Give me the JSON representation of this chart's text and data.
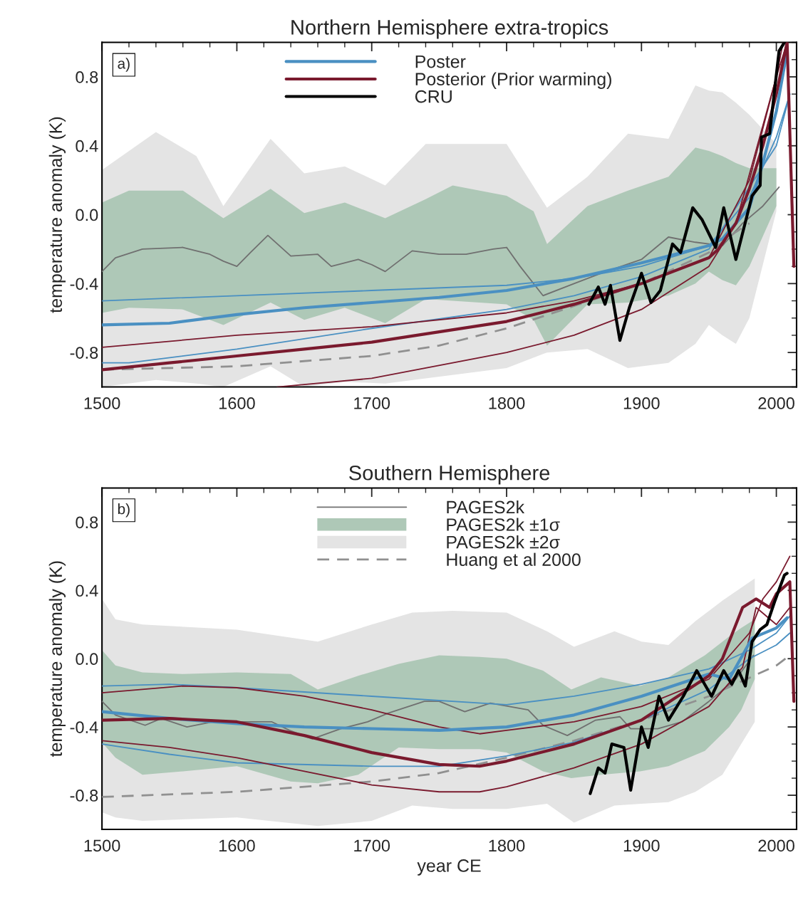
{
  "chart_data": [
    {
      "type": "line",
      "title": "Northern Hemisphere extra-tropics",
      "ylabel": "temperature anomaly (K)",
      "annotations": [
        "a)"
      ],
      "xlim": [
        1500,
        2015
      ],
      "ylim": [
        -1.0,
        1.0
      ],
      "xticks": [
        1500,
        1600,
        1700,
        1800,
        1900,
        2000
      ],
      "yticks": [
        {
          "value": -0.8,
          "label": "-0.8"
        },
        {
          "value": -0.4,
          "label": "-0.4"
        },
        {
          "value": 0.0,
          "label": "0.0"
        },
        {
          "value": 0.4,
          "label": "0.4"
        },
        {
          "value": 0.8,
          "label": "0.8"
        }
      ],
      "legend": "top",
      "grid": false,
      "series": [
        {
          "type": "line",
          "color": "#707070",
          "x": [
            1500,
            1510,
            1530,
            1560,
            1580,
            1590,
            1600,
            1610,
            1623,
            1640,
            1660,
            1670,
            1690,
            1700,
            1710,
            1730,
            1750,
            1770,
            1790,
            1800,
            1810,
            1827,
            1850,
            1870,
            1900,
            1920,
            1940,
            1960,
            1975,
            1990,
            2002
          ],
          "values": [
            -0.33,
            -0.25,
            -0.2,
            -0.19,
            -0.23,
            -0.27,
            -0.3,
            -0.22,
            -0.12,
            -0.24,
            -0.23,
            -0.3,
            -0.26,
            -0.29,
            -0.33,
            -0.21,
            -0.23,
            -0.23,
            -0.2,
            -0.19,
            -0.3,
            -0.47,
            -0.4,
            -0.34,
            -0.26,
            -0.13,
            -0.16,
            -0.18,
            -0.05,
            0.05,
            0.16
          ]
        },
        {
          "color": "#aec8b7",
          "x": [
            1500,
            1520,
            1560,
            1590,
            1625,
            1650,
            1680,
            1710,
            1740,
            1760,
            1800,
            1820,
            1830,
            1860,
            1890,
            1920,
            1940,
            1950,
            1960,
            1970,
            1980,
            2000
          ],
          "values": [
            null,
            null,
            null,
            null,
            null,
            null,
            null,
            null,
            null,
            null,
            null,
            null,
            null,
            null,
            null,
            null,
            null,
            null,
            null,
            null,
            null,
            null
          ],
          "lower": [
            -0.57,
            -0.54,
            -0.55,
            -0.64,
            -0.51,
            -0.61,
            -0.54,
            -0.63,
            -0.49,
            -0.5,
            -0.52,
            -0.61,
            -0.76,
            -0.52,
            -0.51,
            -0.47,
            -0.4,
            -0.33,
            -0.38,
            -0.41,
            -0.3,
            0.05
          ],
          "upper": [
            0.07,
            0.14,
            0.14,
            -0.02,
            0.15,
            0.01,
            0.07,
            -0.02,
            0.09,
            0.17,
            0.11,
            0.02,
            -0.17,
            0.05,
            0.14,
            0.22,
            0.39,
            0.37,
            0.34,
            0.3,
            0.27,
            0.27
          ]
        },
        {
          "color": "#e4e4e4",
          "x": [
            1500,
            1540,
            1570,
            1590,
            1625,
            1650,
            1680,
            1710,
            1740,
            1770,
            1800,
            1830,
            1860,
            1890,
            1920,
            1940,
            1950,
            1960,
            1970,
            1980,
            2000
          ],
          "values": [
            null,
            null,
            null,
            null,
            null,
            null,
            null,
            null,
            null,
            null,
            null,
            null,
            null,
            null,
            null,
            null,
            null,
            null,
            null,
            null,
            null
          ],
          "lower": [
            -1.0,
            -0.96,
            -0.98,
            -1.0,
            -0.88,
            -1.0,
            -0.97,
            -0.98,
            -0.95,
            -0.92,
            -0.89,
            -0.8,
            -0.78,
            -0.89,
            -0.86,
            -0.75,
            -0.64,
            -0.7,
            -0.75,
            -0.6,
            0.02
          ],
          "upper": [
            0.26,
            0.48,
            0.34,
            0.05,
            0.44,
            0.24,
            0.28,
            0.17,
            0.41,
            0.41,
            0.41,
            0.04,
            0.22,
            0.47,
            0.44,
            0.75,
            0.72,
            0.71,
            0.65,
            0.58,
            0.41
          ]
        },
        {
          "type": "line",
          "line_style": "dashed",
          "color": "#909090",
          "x": [
            1500,
            1600,
            1700,
            1750,
            1800,
            1850,
            1900,
            1950,
            1970,
            1980
          ],
          "values": [
            -0.9,
            -0.88,
            -0.82,
            -0.76,
            -0.66,
            -0.53,
            -0.4,
            -0.22,
            -0.1,
            -0.05
          ]
        },
        {
          "type": "line",
          "color": "#4a90c2",
          "x": [
            1500,
            1600,
            1700,
            1800,
            1850,
            1900,
            1950,
            1980,
            2000,
            2010
          ],
          "values": [
            -0.5,
            -0.47,
            -0.44,
            -0.41,
            -0.37,
            -0.3,
            -0.18,
            0.1,
            0.45,
            0.7
          ]
        },
        {
          "type": "line",
          "color": "#4a90c2",
          "x": [
            1500,
            1520,
            1600,
            1700,
            1800,
            1850,
            1900,
            1950,
            2000,
            2010
          ],
          "values": [
            -0.86,
            -0.86,
            -0.78,
            -0.66,
            -0.55,
            -0.47,
            -0.36,
            -0.2,
            0.4,
            0.7
          ]
        },
        {
          "type": "line",
          "color": "#7a1a2e",
          "x": [
            1500,
            1600,
            1700,
            1800,
            1850,
            1900,
            1950,
            1980,
            2000,
            2008,
            2013
          ],
          "values": [
            -0.77,
            -0.7,
            -0.65,
            -0.57,
            -0.5,
            -0.4,
            -0.25,
            0.2,
            0.8,
            1.0,
            -0.2
          ]
        },
        {
          "type": "line",
          "color": "#7a1a2e",
          "x": [
            1630,
            1700,
            1800,
            1850,
            1900,
            1950,
            1970,
            2000,
            2005
          ],
          "values": [
            -1.0,
            -0.95,
            -0.8,
            -0.7,
            -0.55,
            -0.3,
            -0.05,
            0.8,
            1.0
          ]
        },
        {
          "name": "Poster",
          "color": "#4a90c2",
          "x": [
            1500,
            1550,
            1600,
            1650,
            1700,
            1750,
            1800,
            1850,
            1900,
            1950,
            1960,
            1980,
            1990,
            2000,
            2008
          ],
          "values": [
            -0.64,
            -0.63,
            -0.58,
            -0.54,
            -0.51,
            -0.48,
            -0.44,
            -0.37,
            -0.28,
            -0.18,
            -0.14,
            0.04,
            0.3,
            0.6,
            0.95
          ]
        },
        {
          "name": "Posterior (Prior warming)",
          "color": "#7a1a2e",
          "x": [
            1500,
            1550,
            1600,
            1650,
            1700,
            1750,
            1800,
            1850,
            1900,
            1950,
            1957,
            1970,
            1980,
            1990,
            2000,
            2008,
            2013
          ],
          "values": [
            -0.9,
            -0.86,
            -0.82,
            -0.78,
            -0.74,
            -0.68,
            -0.62,
            -0.52,
            -0.4,
            -0.25,
            -0.2,
            -0.05,
            0.15,
            0.4,
            0.7,
            1.0,
            -0.3
          ]
        },
        {
          "name": "CRU",
          "color": "#000000",
          "x": [
            1861,
            1868,
            1873,
            1877,
            1884,
            1891,
            1900,
            1907,
            1914,
            1923,
            1929,
            1938,
            1945,
            1955,
            1961,
            1970,
            1982,
            1988,
            1989,
            1995,
            2002,
            2006
          ],
          "values": [
            -0.52,
            -0.42,
            -0.52,
            -0.41,
            -0.73,
            -0.54,
            -0.34,
            -0.51,
            -0.44,
            -0.17,
            -0.22,
            0.04,
            -0.03,
            -0.19,
            0.04,
            -0.26,
            0.11,
            0.17,
            0.45,
            0.47,
            0.95,
            1.0
          ]
        }
      ]
    },
    {
      "type": "line",
      "title": "Southern Hemisphere",
      "xlabel": "year CE",
      "ylabel": "temperature anomaly (K)",
      "annotations": [
        "b)"
      ],
      "xlim": [
        1500,
        2015
      ],
      "ylim": [
        -1.0,
        1.0
      ],
      "xticks": [
        1500,
        1600,
        1700,
        1800,
        1900,
        2000
      ],
      "yticks": [
        {
          "value": -0.8,
          "label": "-0.8"
        },
        {
          "value": -0.4,
          "label": "-0.4"
        },
        {
          "value": 0.0,
          "label": "0.0"
        },
        {
          "value": 0.4,
          "label": "0.4"
        },
        {
          "value": 0.8,
          "label": "0.8"
        }
      ],
      "legend": "top",
      "grid": false,
      "series": [
        {
          "name": "PAGES2k",
          "type": "line",
          "color": "#707070",
          "x": [
            1500,
            1510,
            1532,
            1544,
            1563,
            1582,
            1626,
            1639,
            1656,
            1677,
            1697,
            1712,
            1739,
            1750,
            1769,
            1788,
            1816,
            1827,
            1845,
            1866,
            1884,
            1892,
            1912,
            1930,
            1950,
            1970,
            1983
          ],
          "values": [
            -0.25,
            -0.33,
            -0.39,
            -0.35,
            -0.4,
            -0.37,
            -0.37,
            -0.42,
            -0.47,
            -0.41,
            -0.37,
            -0.32,
            -0.25,
            -0.25,
            -0.31,
            -0.26,
            -0.3,
            -0.39,
            -0.45,
            -0.36,
            -0.34,
            -0.41,
            -0.41,
            -0.37,
            -0.25,
            -0.12,
            0.02
          ]
        },
        {
          "name": "PAGES2k ±1σ",
          "color": "#aec8b7",
          "x": [
            1500,
            1510,
            1530,
            1560,
            1600,
            1640,
            1660,
            1690,
            1720,
            1750,
            1780,
            1800,
            1827,
            1848,
            1870,
            1899,
            1920,
            1947,
            1965,
            1974,
            1984
          ],
          "values": [
            null,
            null,
            null,
            null,
            null,
            null,
            null,
            null,
            null,
            null,
            null,
            null,
            null,
            null,
            null,
            null,
            null,
            null,
            null,
            null,
            null
          ],
          "lower": [
            -0.49,
            -0.58,
            -0.68,
            -0.66,
            -0.63,
            -0.72,
            -0.73,
            -0.68,
            -0.52,
            -0.53,
            -0.53,
            -0.55,
            -0.66,
            -0.7,
            -0.68,
            -0.66,
            -0.63,
            -0.54,
            -0.4,
            -0.3,
            -0.12
          ],
          "upper": [
            0.05,
            -0.04,
            -0.08,
            -0.09,
            -0.08,
            -0.09,
            -0.18,
            -0.1,
            -0.03,
            0.02,
            0.01,
            0.0,
            -0.07,
            -0.18,
            -0.11,
            -0.16,
            -0.11,
            0.02,
            0.13,
            0.18,
            0.23
          ]
        },
        {
          "name": "PAGES2k ±2σ",
          "color": "#e4e4e4",
          "x": [
            1500,
            1510,
            1530,
            1600,
            1660,
            1700,
            1730,
            1760,
            1800,
            1830,
            1850,
            1880,
            1900,
            1920,
            1940,
            1960,
            1984
          ],
          "values": [
            null,
            null,
            null,
            null,
            null,
            null,
            null,
            null,
            null,
            null,
            null,
            null,
            null,
            null,
            null,
            null,
            null
          ],
          "lower": [
            -0.9,
            -0.93,
            -0.95,
            -0.93,
            -0.98,
            -0.95,
            -0.86,
            -0.88,
            -0.88,
            -0.85,
            -0.96,
            -0.86,
            -0.85,
            -0.84,
            -0.78,
            -0.68,
            -0.37
          ],
          "upper": [
            0.35,
            0.23,
            0.2,
            0.17,
            0.1,
            0.2,
            0.27,
            0.28,
            0.27,
            0.16,
            0.07,
            0.16,
            0.1,
            0.08,
            0.22,
            0.34,
            0.47
          ]
        },
        {
          "name": "Huang et al 2000",
          "type": "line",
          "line_style": "dashed",
          "color": "#909090",
          "x": [
            1500,
            1600,
            1700,
            1750,
            1800,
            1850,
            1900,
            1950,
            2000,
            2010
          ],
          "values": [
            -0.81,
            -0.78,
            -0.72,
            -0.67,
            -0.58,
            -0.48,
            -0.36,
            -0.22,
            -0.04,
            0.02
          ]
        },
        {
          "type": "line",
          "color": "#4a90c2",
          "x": [
            1500,
            1550,
            1600,
            1700,
            1800,
            1850,
            1900,
            1950,
            1980,
            2000,
            2010
          ],
          "values": [
            -0.16,
            -0.15,
            -0.17,
            -0.22,
            -0.27,
            -0.22,
            -0.15,
            -0.06,
            0.05,
            0.15,
            0.25
          ]
        },
        {
          "type": "line",
          "color": "#4a90c2",
          "x": [
            1500,
            1550,
            1600,
            1700,
            1750,
            1800,
            1850,
            1900,
            1950,
            1980,
            2000,
            2010
          ],
          "values": [
            -0.5,
            -0.56,
            -0.61,
            -0.63,
            -0.63,
            -0.57,
            -0.49,
            -0.36,
            -0.18,
            0.0,
            0.08,
            0.15
          ]
        },
        {
          "type": "line",
          "color": "#7a1a2e",
          "x": [
            1500,
            1560,
            1600,
            1650,
            1700,
            1750,
            1780,
            1800,
            1850,
            1900,
            1950,
            1980,
            1990,
            2000,
            2010
          ],
          "values": [
            -0.2,
            -0.16,
            -0.17,
            -0.22,
            -0.3,
            -0.4,
            -0.44,
            -0.42,
            -0.37,
            -0.28,
            -0.12,
            0.15,
            0.35,
            0.45,
            0.6
          ]
        },
        {
          "type": "line",
          "color": "#7a1a2e",
          "x": [
            1500,
            1550,
            1600,
            1650,
            1700,
            1750,
            1780,
            1800,
            1850,
            1900,
            1950,
            1975,
            1985,
            2000,
            2010
          ],
          "values": [
            -0.48,
            -0.52,
            -0.58,
            -0.66,
            -0.74,
            -0.78,
            -0.78,
            -0.75,
            -0.64,
            -0.5,
            -0.28,
            -0.05,
            0.3,
            0.2,
            0.3
          ]
        },
        {
          "color": "#4a90c2",
          "x": [
            1500,
            1550,
            1600,
            1650,
            1700,
            1750,
            1800,
            1850,
            1900,
            1950,
            1965,
            1982,
            2000,
            2008
          ],
          "values": [
            -0.31,
            -0.35,
            -0.38,
            -0.4,
            -0.41,
            -0.42,
            -0.4,
            -0.33,
            -0.22,
            -0.09,
            -0.12,
            0.12,
            0.18,
            0.24
          ]
        },
        {
          "color": "#7a1a2e",
          "x": [
            1500,
            1550,
            1600,
            1650,
            1700,
            1750,
            1780,
            1800,
            1850,
            1900,
            1950,
            1960,
            1975,
            1985,
            1995,
            2000,
            2010,
            2013
          ],
          "values": [
            -0.36,
            -0.35,
            -0.37,
            -0.45,
            -0.55,
            -0.62,
            -0.63,
            -0.6,
            -0.5,
            -0.36,
            -0.1,
            0.0,
            0.3,
            0.35,
            0.3,
            0.38,
            0.45,
            -0.25
          ]
        },
        {
          "color": "#000000",
          "x": [
            1862,
            1868,
            1873,
            1878,
            1887,
            1892,
            1900,
            1905,
            1913,
            1920,
            1931,
            1941,
            1952,
            1961,
            1967,
            1972,
            1977,
            1982,
            1988,
            1993,
            1999,
            2006,
            2008
          ],
          "values": [
            -0.79,
            -0.64,
            -0.67,
            -0.5,
            -0.52,
            -0.77,
            -0.4,
            -0.52,
            -0.22,
            -0.36,
            -0.22,
            -0.07,
            -0.22,
            -0.07,
            -0.15,
            -0.07,
            -0.16,
            0.1,
            0.17,
            0.2,
            0.34,
            0.49,
            0.5
          ]
        }
      ]
    }
  ]
}
